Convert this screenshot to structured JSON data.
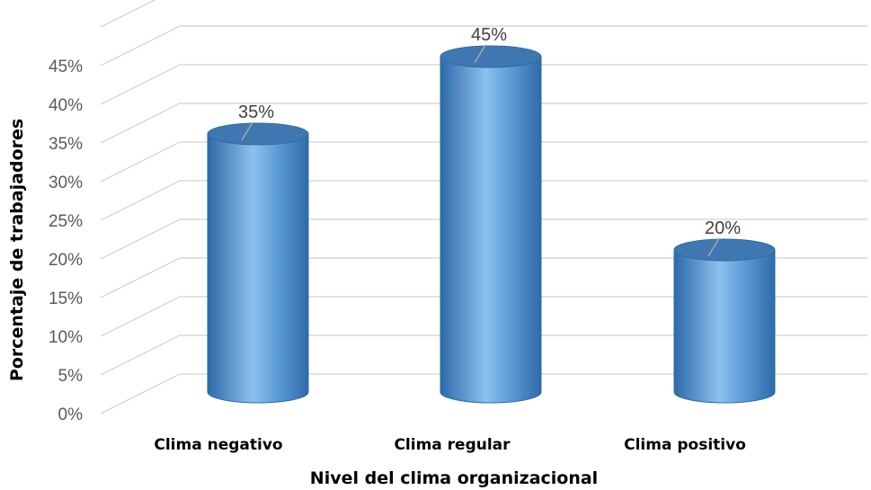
{
  "chart_data": {
    "type": "bar",
    "style": "3d-cylinder",
    "categories": [
      "Clima negativo",
      "Clima regular",
      "Clima positivo"
    ],
    "values": [
      35,
      45,
      20
    ],
    "data_labels": [
      "35%",
      "45%",
      "20%"
    ],
    "y_ticks": [
      "0%",
      "5%",
      "10%",
      "15%",
      "20%",
      "25%",
      "30%",
      "35%",
      "40%",
      "45%"
    ],
    "ylim": [
      0,
      50
    ],
    "xlabel": "Nivel del clima organizacional",
    "ylabel": "Porcentaje de trabajadores",
    "grid": true,
    "legend": "none",
    "colors": {
      "bar_main": "#5b9bd5",
      "bar_light": "#8cc1ef",
      "bar_dark": "#2e6aa8",
      "bar_top": "#3f78b0",
      "grid": "#d9d9d9"
    }
  }
}
